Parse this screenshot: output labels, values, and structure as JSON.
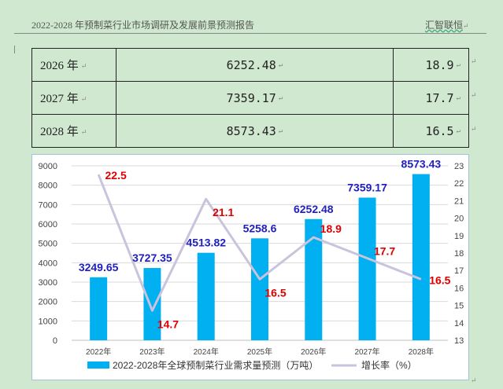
{
  "header": {
    "report_title": "2022-2028 年预制菜行业市场调研及发展前景预测报告",
    "publisher": "汇智联恒",
    "mark": "↵"
  },
  "table": {
    "rows": [
      {
        "year": "2026 年",
        "demand": "6252.48",
        "growth": "18.9"
      },
      {
        "year": "2027 年",
        "demand": "7359.17",
        "growth": "17.7"
      },
      {
        "year": "2028 年",
        "demand": "8573.43",
        "growth": "16.5"
      }
    ],
    "return_mark": "↵"
  },
  "chart_data": {
    "type": "bar",
    "categories": [
      "2022年",
      "2023年",
      "2024年",
      "2025年",
      "2026年",
      "2027年",
      "2028年"
    ],
    "series": [
      {
        "name": "2022-2028年全球预制菜行业需求量预测（万吨）",
        "kind": "bar",
        "axis": "left",
        "color": "#00b0f0",
        "values": [
          3249.65,
          3727.35,
          4513.82,
          5258.6,
          6252.48,
          7359.17,
          8573.43
        ],
        "labels": [
          "3249.65",
          "3727.35",
          "4513.82",
          "5258.6",
          "6252.48",
          "7359.17",
          "8573.43"
        ],
        "label_color": "#1f1fbf"
      },
      {
        "name": "增长率（%）",
        "kind": "line",
        "axis": "right",
        "color": "#c9c3dc",
        "values": [
          22.5,
          14.7,
          21.1,
          16.5,
          18.9,
          17.7,
          16.5
        ],
        "labels": [
          "22.5",
          "14.7",
          "21.1",
          "16.5",
          "18.9",
          "17.7",
          "16.5"
        ],
        "label_color": "#e00000"
      }
    ],
    "y_left": {
      "min": 0,
      "max": 9000,
      "step": 1000,
      "ticks": [
        "0",
        "1000",
        "2000",
        "3000",
        "4000",
        "5000",
        "6000",
        "7000",
        "8000",
        "9000"
      ]
    },
    "y_right": {
      "min": 13,
      "max": 23,
      "step": 1,
      "ticks": [
        "13",
        "14",
        "15",
        "16",
        "17",
        "18",
        "19",
        "20",
        "21",
        "22",
        "23"
      ]
    },
    "grid": true,
    "legend_position": "bottom"
  }
}
